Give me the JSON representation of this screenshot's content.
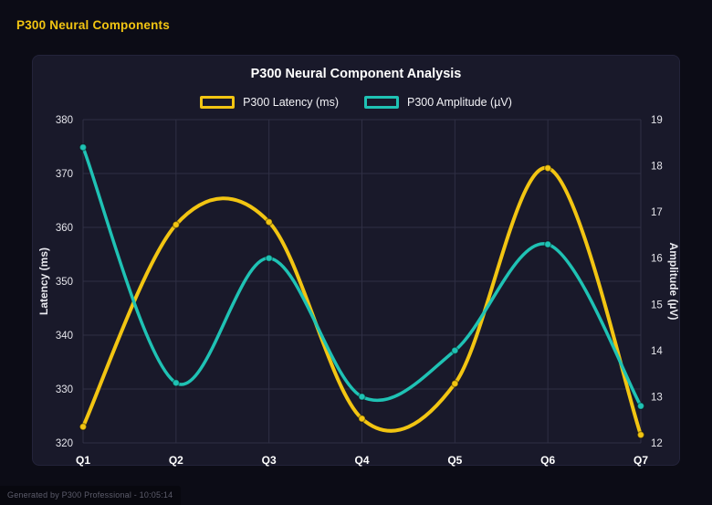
{
  "page": {
    "header": "P300 Neural Components",
    "footer": "Generated by P300 Professional - 10:05:14"
  },
  "colors": {
    "accent_yellow": "#f2c512",
    "accent_teal": "#1fc2b4",
    "background": "#0c0c16",
    "panel": "#19192a",
    "grid": "#2f2f44",
    "tick_text": "#e4e4ea",
    "axis_title_text": "#eaeaf0",
    "x_label_text": "#ffffff"
  },
  "chart_data": {
    "type": "line",
    "title": "P300 Neural Component Analysis",
    "categories": [
      "Q1",
      "Q2",
      "Q3",
      "Q4",
      "Q5",
      "Q6",
      "Q7"
    ],
    "series": [
      {
        "name": "P300 Latency (ms)",
        "axis": "left",
        "color": "#f2c512",
        "values": [
          323,
          360.5,
          361,
          324.5,
          331,
          371,
          321.5
        ]
      },
      {
        "name": "P300 Amplitude (µV)",
        "axis": "right",
        "color": "#1fc2b4",
        "values": [
          18.4,
          13.3,
          16.0,
          13.0,
          14.0,
          16.3,
          12.8
        ]
      }
    ],
    "left_axis": {
      "label": "Latency (ms)",
      "min": 320,
      "max": 380,
      "step": 10,
      "ticks": [
        320,
        330,
        340,
        350,
        360,
        370,
        380
      ]
    },
    "right_axis": {
      "label": "Amplitude (µV)",
      "min": 12,
      "max": 19,
      "step": 1,
      "ticks": [
        12,
        13,
        14,
        15,
        16,
        17,
        18,
        19
      ]
    },
    "grid": true,
    "legend_position": "top",
    "smooth": true
  }
}
